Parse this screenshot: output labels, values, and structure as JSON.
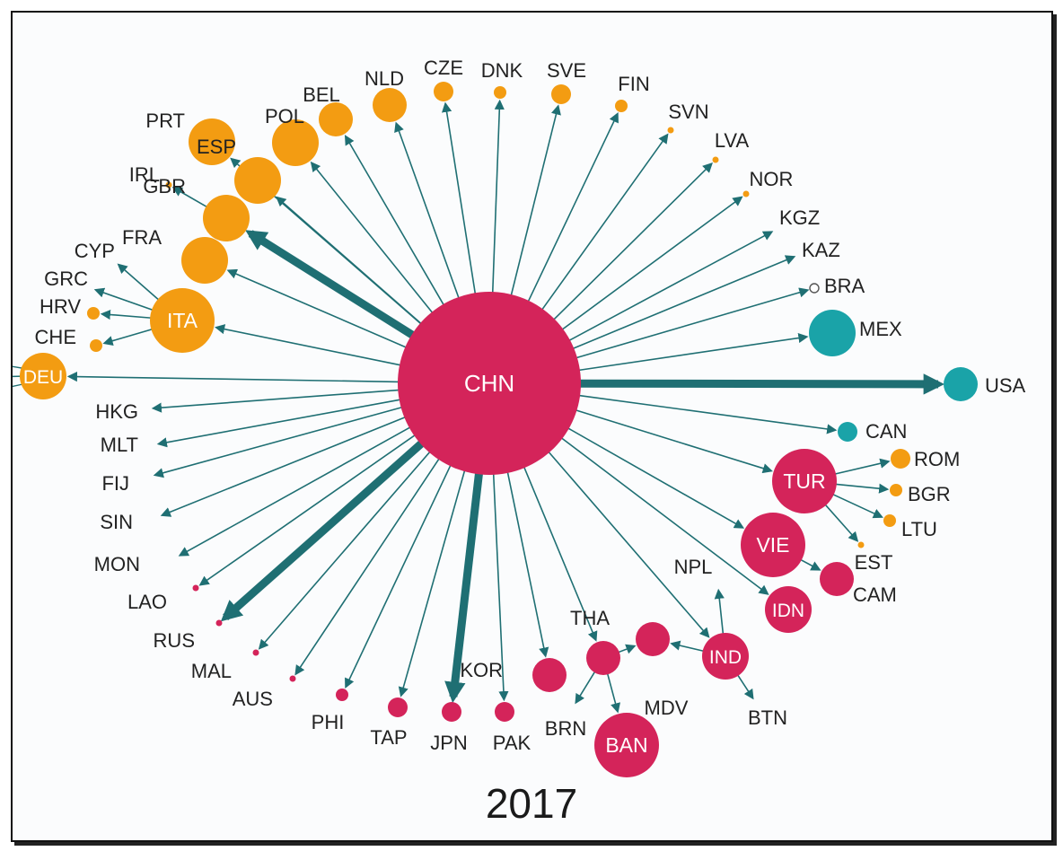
{
  "year": "2017",
  "colors": {
    "edge": "#1f6f73",
    "europe": "#f39c12",
    "asia": "#d4245a",
    "americas": "#1aa3a8",
    "label": "#222222",
    "node_text": "#ffffff"
  },
  "center": {
    "id": "CHN",
    "label": "CHN",
    "group": "asia",
    "size": "xl"
  },
  "nodes": [
    {
      "id": "DEU",
      "label": "DEU",
      "group": "europe",
      "size": "m",
      "edge": "normal"
    },
    {
      "id": "ITA",
      "label": "ITA",
      "group": "europe",
      "size": "l",
      "edge": "normal"
    },
    {
      "id": "FRA",
      "label": "FRA",
      "group": "europe",
      "size": "m",
      "edge": "normal"
    },
    {
      "id": "GBR",
      "label": "GBR",
      "group": "europe",
      "size": "m",
      "edge": "thick"
    },
    {
      "id": "ESP",
      "label": "ESP",
      "group": "europe",
      "size": "m",
      "edge": "normal"
    },
    {
      "id": "PRT",
      "label": "PRT",
      "group": "europe",
      "size": "m",
      "edge": "normal"
    },
    {
      "id": "POL",
      "label": "POL",
      "group": "europe",
      "size": "m",
      "edge": "normal"
    },
    {
      "id": "BEL",
      "label": "BEL",
      "group": "europe",
      "size": "s",
      "edge": "normal"
    },
    {
      "id": "NLD",
      "label": "NLD",
      "group": "europe",
      "size": "s",
      "edge": "normal"
    },
    {
      "id": "CZE",
      "label": "CZE",
      "group": "europe",
      "size": "xs",
      "edge": "normal"
    },
    {
      "id": "DNK",
      "label": "DNK",
      "group": "europe",
      "size": "xxs",
      "edge": "normal"
    },
    {
      "id": "SVE",
      "label": "SVE",
      "group": "europe",
      "size": "xs",
      "edge": "normal"
    },
    {
      "id": "FIN",
      "label": "FIN",
      "group": "europe",
      "size": "xxs",
      "edge": "normal"
    },
    {
      "id": "SVN",
      "label": "SVN",
      "group": "europe",
      "size": "dot",
      "edge": "normal"
    },
    {
      "id": "LVA",
      "label": "LVA",
      "group": "europe",
      "size": "dot",
      "edge": "normal"
    },
    {
      "id": "NOR",
      "label": "NOR",
      "group": "europe",
      "size": "dot",
      "edge": "normal"
    },
    {
      "id": "KGZ",
      "label": "KGZ",
      "group": "asia",
      "size": "none",
      "edge": "normal"
    },
    {
      "id": "KAZ",
      "label": "KAZ",
      "group": "asia",
      "size": "none",
      "edge": "normal"
    },
    {
      "id": "BRA",
      "label": "BRA",
      "group": "americas",
      "size": "ring",
      "edge": "normal"
    },
    {
      "id": "MEX",
      "label": "MEX",
      "group": "americas",
      "size": "m",
      "edge": "normal"
    },
    {
      "id": "USA",
      "label": "USA",
      "group": "americas",
      "size": "s",
      "edge": "thick"
    },
    {
      "id": "CAN",
      "label": "CAN",
      "group": "americas",
      "size": "xs",
      "edge": "normal"
    },
    {
      "id": "TUR",
      "label": "TUR",
      "group": "asia",
      "size": "l",
      "edge": "normal"
    },
    {
      "id": "VIE",
      "label": "VIE",
      "group": "asia",
      "size": "l",
      "edge": "normal"
    },
    {
      "id": "IDN",
      "label": "IDN",
      "group": "asia",
      "size": "m",
      "edge": "normal"
    },
    {
      "id": "IND",
      "label": "IND",
      "group": "asia",
      "size": "m",
      "edge": "normal"
    },
    {
      "id": "THA",
      "label": "THA",
      "group": "asia",
      "size": "s",
      "edge": "normal"
    },
    {
      "id": "KOR",
      "label": "KOR",
      "group": "asia",
      "size": "s",
      "edge": "normal"
    },
    {
      "id": "PAK",
      "label": "PAK",
      "group": "asia",
      "size": "xs",
      "edge": "normal"
    },
    {
      "id": "JPN",
      "label": "JPN",
      "group": "asia",
      "size": "xs",
      "edge": "thick"
    },
    {
      "id": "TAP",
      "label": "TAP",
      "group": "asia",
      "size": "xs",
      "edge": "normal"
    },
    {
      "id": "PHI",
      "label": "PHI",
      "group": "asia",
      "size": "xxs",
      "edge": "normal"
    },
    {
      "id": "AUS",
      "label": "AUS",
      "group": "asia",
      "size": "dot",
      "edge": "normal"
    },
    {
      "id": "MAL",
      "label": "MAL",
      "group": "asia",
      "size": "dot",
      "edge": "normal"
    },
    {
      "id": "RUS",
      "label": "RUS",
      "group": "asia",
      "size": "dot",
      "edge": "thick"
    },
    {
      "id": "LAO",
      "label": "LAO",
      "group": "asia",
      "size": "dot",
      "edge": "normal"
    },
    {
      "id": "MON",
      "label": "MON",
      "group": "asia",
      "size": "none",
      "edge": "normal"
    },
    {
      "id": "SIN",
      "label": "SIN",
      "group": "asia",
      "size": "none",
      "edge": "normal"
    },
    {
      "id": "FIJ",
      "label": "FIJ",
      "group": "asia",
      "size": "none",
      "edge": "normal"
    },
    {
      "id": "MLT",
      "label": "MLT",
      "group": "europe",
      "size": "none",
      "edge": "normal"
    },
    {
      "id": "HKG",
      "label": "HKG",
      "group": "asia",
      "size": "none",
      "edge": "normal"
    }
  ],
  "secondary": [
    {
      "id": "CHE",
      "label": "CHE",
      "group": "europe",
      "size": "xxs",
      "from": "ITA"
    },
    {
      "id": "HRV",
      "label": "HRV",
      "group": "europe",
      "size": "xxs",
      "from": "ITA"
    },
    {
      "id": "GRC",
      "label": "GRC",
      "group": "europe",
      "size": "none",
      "from": "ITA"
    },
    {
      "id": "CYP",
      "label": "CYP",
      "group": "europe",
      "size": "none",
      "from": "ITA"
    },
    {
      "id": "IRL",
      "label": "IRL",
      "group": "europe",
      "size": "dot",
      "from": "GBR"
    },
    {
      "id": "ROM",
      "label": "ROM",
      "group": "europe",
      "size": "xs",
      "from": "TUR"
    },
    {
      "id": "BGR",
      "label": "BGR",
      "group": "europe",
      "size": "xxs",
      "from": "TUR"
    },
    {
      "id": "LTU",
      "label": "LTU",
      "group": "europe",
      "size": "xxs",
      "from": "TUR"
    },
    {
      "id": "EST",
      "label": "EST",
      "group": "europe",
      "size": "dot",
      "from": "TUR"
    },
    {
      "id": "CAM",
      "label": "CAM",
      "group": "asia",
      "size": "s",
      "from": "VIE"
    },
    {
      "id": "NPL",
      "label": "NPL",
      "group": "asia",
      "size": "none",
      "from": "IND"
    },
    {
      "id": "BTN",
      "label": "BTN",
      "group": "asia",
      "size": "none",
      "from": "IND"
    },
    {
      "id": "MDV",
      "label": "MDV",
      "group": "asia",
      "size": "s",
      "from": "IND"
    },
    {
      "id": "BRN",
      "label": "BRN",
      "group": "asia",
      "size": "none",
      "from": "THA"
    },
    {
      "id": "BAN",
      "label": "BAN",
      "group": "asia",
      "size": "l",
      "from": "THA"
    }
  ],
  "extra_edges": [
    {
      "from": "THA",
      "to": "MDV"
    }
  ]
}
